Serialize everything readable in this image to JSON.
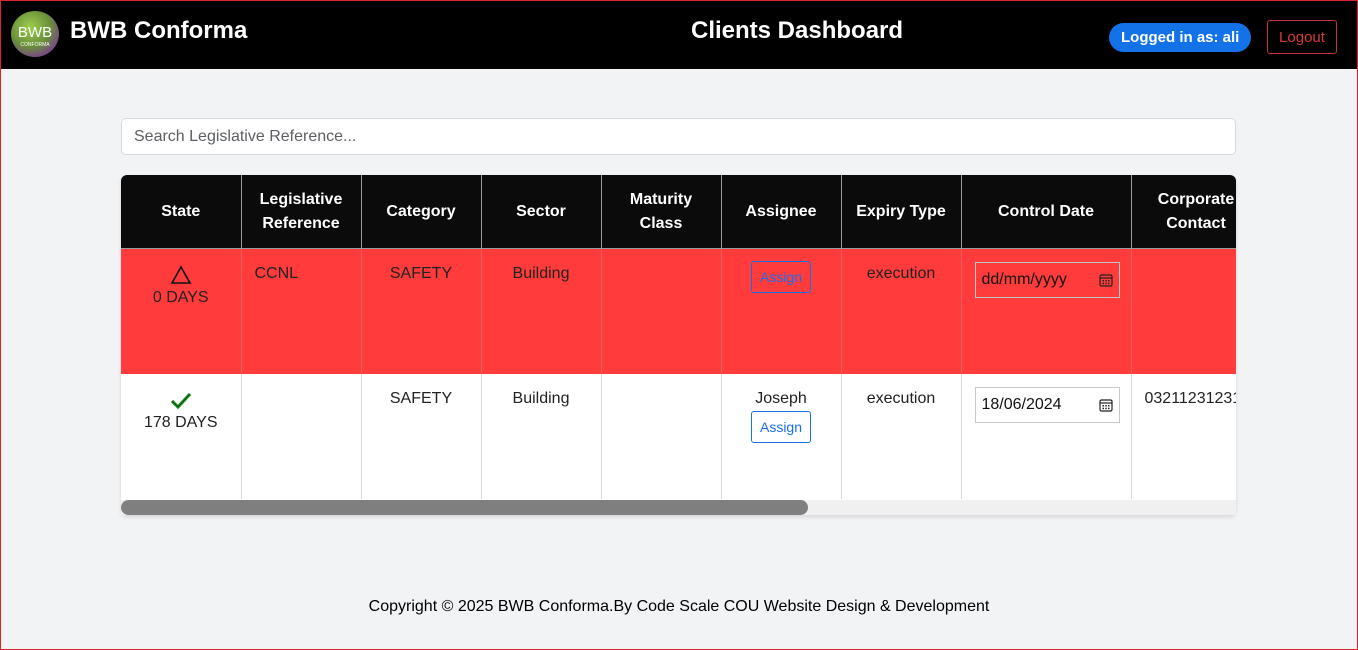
{
  "header": {
    "logo_text": "BWB",
    "logo_subtext": "CONFORMA",
    "brand": "BWB Conforma",
    "title": "Clients Dashboard",
    "user_badge": "Logged in as: ali",
    "logout_label": "Logout"
  },
  "search": {
    "placeholder": "Search Legislative Reference..."
  },
  "table": {
    "columns": [
      "State",
      "Legislative Reference",
      "Category",
      "Sector",
      "Maturity Class",
      "Assignee",
      "Expiry Type",
      "Control Date",
      "Corporate Contact"
    ],
    "rows": [
      {
        "state_icon": "warning-triangle-icon",
        "state_days": "0 DAYS",
        "legislative_reference": "CCNL",
        "category": "SAFETY",
        "sector": "Building",
        "maturity_class": "",
        "assignee": "",
        "assign_label": "Assign",
        "expiry_type": "execution",
        "control_date": "dd/mm/yyyy",
        "corporate_contact": "",
        "row_color": "#ff3b3b"
      },
      {
        "state_icon": "checkmark-icon",
        "state_days": "178 DAYS",
        "legislative_reference": "",
        "category": "SAFETY",
        "sector": "Building",
        "maturity_class": "",
        "assignee": "Joseph",
        "assign_label": "Assign",
        "expiry_type": "execution",
        "control_date": "18/06/2024",
        "corporate_contact": "03211231231",
        "row_color": "#ffffff"
      }
    ]
  },
  "footer": {
    "text": "Copyright © 2025 BWB Conforma.By Code Scale COU Website Design & Development"
  },
  "colors": {
    "accent": "#1472e8",
    "expired_row": "#ff3b3b",
    "logout": "#d63a40"
  }
}
